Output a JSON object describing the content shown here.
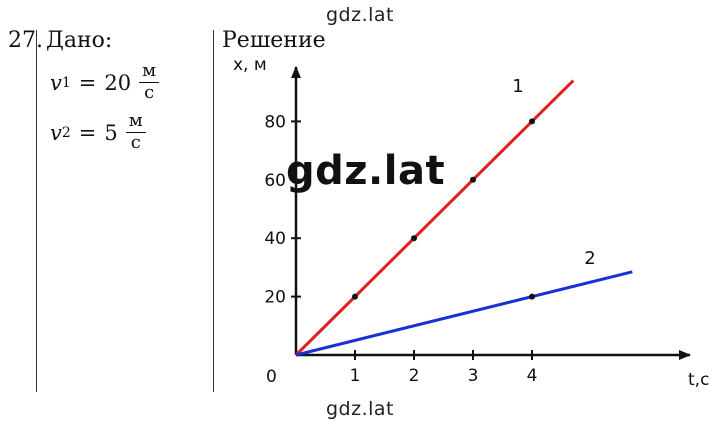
{
  "watermark": "gdz.lat",
  "problem_number": "27.",
  "given_title": "Дано:",
  "solution_title": "Решение",
  "given": [
    {
      "var": "v",
      "sub": "1",
      "value": "20",
      "unit_num": "м",
      "unit_den": "с"
    },
    {
      "var": "v",
      "sub": "2",
      "value": "5",
      "unit_num": "м",
      "unit_den": "с"
    }
  ],
  "chart_data": {
    "type": "line",
    "xlabel": "t,c",
    "ylabel": "x, м",
    "origin_label": "0",
    "x_ticks": [
      1,
      2,
      3,
      4
    ],
    "y_ticks": [
      20,
      40,
      60,
      80
    ],
    "series": [
      {
        "name": "1",
        "color": "#e02020",
        "x": [
          0,
          4.7
        ],
        "y": [
          0,
          94
        ],
        "points": [
          [
            1,
            20
          ],
          [
            2,
            40
          ],
          [
            3,
            60
          ],
          [
            4,
            80
          ]
        ]
      },
      {
        "name": "2",
        "color": "#1a2fd6",
        "x": [
          0,
          5.7
        ],
        "y": [
          0,
          28.5
        ],
        "points": [
          [
            4,
            20
          ]
        ]
      }
    ]
  }
}
